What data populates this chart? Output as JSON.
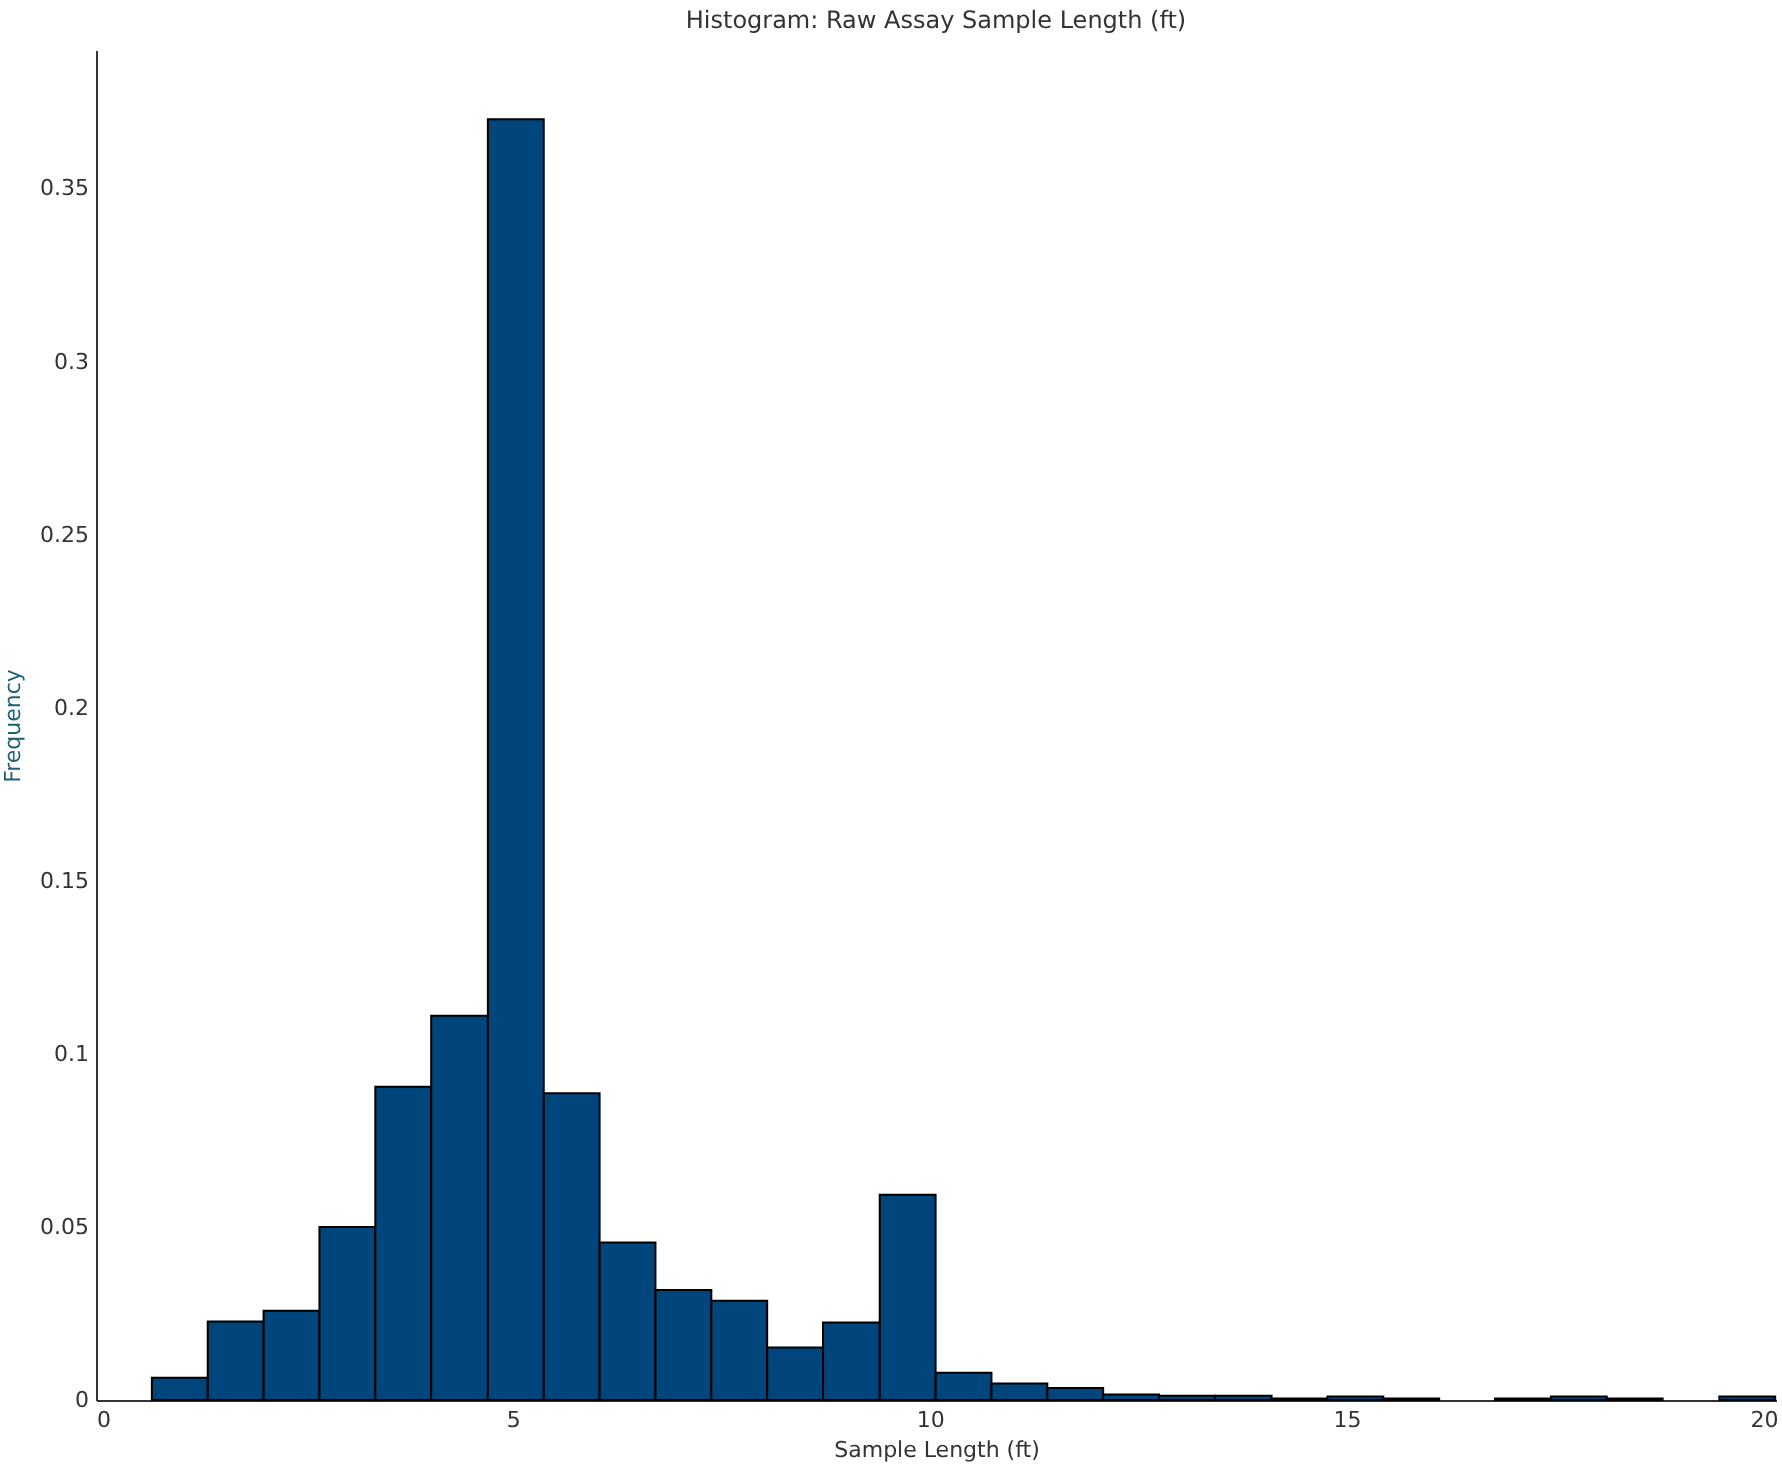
{
  "chart_data": {
    "type": "histogram",
    "title": "Histogram: Raw Assay Sample Length (ft)",
    "xlabel": "Sample Length (ft)",
    "ylabel": "Frequency",
    "bins": [
      0.67,
      1.34,
      2.01,
      2.68,
      3.35,
      4.02,
      4.7,
      5.37,
      6.04,
      6.71,
      7.38,
      8.05,
      8.72,
      9.4,
      10.07,
      10.74,
      11.41,
      12.08,
      12.75,
      13.42,
      14.1,
      14.77,
      15.44,
      16.11,
      16.78,
      17.45,
      18.12,
      18.79,
      19.47,
      20.14
    ],
    "values": [
      0.0064,
      0.0227,
      0.0258,
      0.05,
      0.0905,
      0.111,
      0.37,
      0.0886,
      0.0455,
      0.0318,
      0.0287,
      0.0152,
      0.0224,
      0.0593,
      0.0079,
      0.0048,
      0.0035,
      0.0016,
      0.0012,
      0.0012,
      0.0004,
      0.001,
      0.0004,
      0,
      0.0004,
      0.001,
      0.0004,
      0,
      0.001
    ],
    "color": "#00457c",
    "xlim": [
      0,
      20.15
    ],
    "xticks": [
      0,
      5,
      10,
      15,
      20
    ],
    "ylim": [
      0,
      0.39
    ],
    "yticks": [
      0,
      0.05,
      0.1,
      0.15,
      0.2,
      0.25,
      0.3,
      0.35
    ],
    "grid": false
  }
}
